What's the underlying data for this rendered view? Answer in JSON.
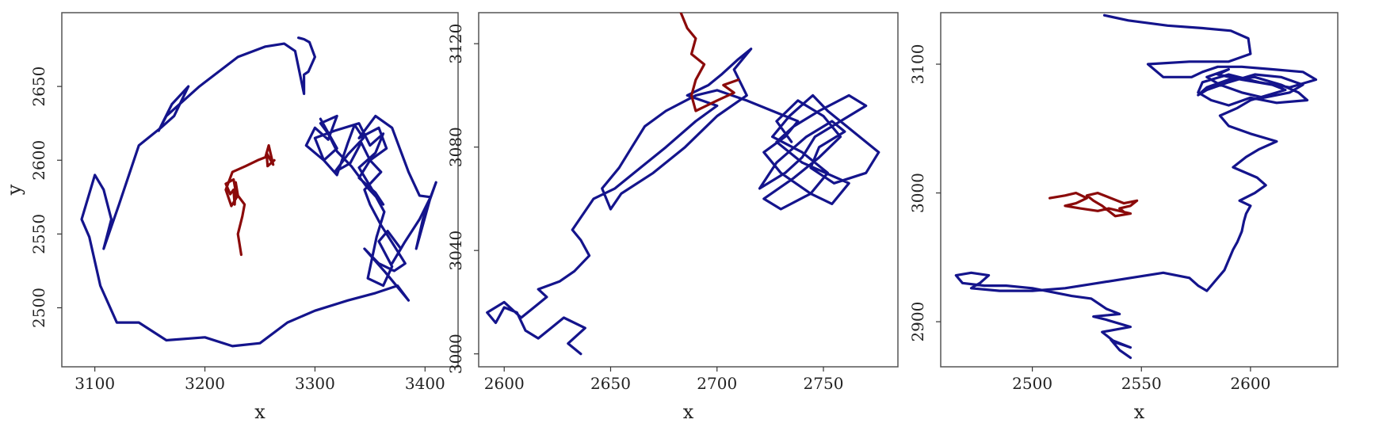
{
  "colors": {
    "track_a": "#14148c",
    "track_b": "#8b0a0a",
    "frame": "#555555"
  },
  "chart_data": [
    {
      "type": "line",
      "xlabel": "x",
      "ylabel": "y",
      "xlim": [
        3070,
        3430
      ],
      "ylim": [
        2460,
        2700
      ],
      "xticks": [
        3100,
        3200,
        3300,
        3400
      ],
      "yticks": [
        2500,
        2550,
        2600,
        2650
      ],
      "series": [
        {
          "color": "#14148c",
          "x": [
            3285,
            3290,
            3295,
            3300,
            3294,
            3290,
            3290,
            3282,
            3272,
            3255,
            3230,
            3195,
            3165,
            3158,
            3170,
            3185,
            3172,
            3160,
            3140,
            3122,
            3108,
            3115,
            3108,
            3100,
            3088,
            3095,
            3105,
            3120,
            3140,
            3165,
            3200,
            3225,
            3250,
            3275,
            3300,
            3330,
            3355,
            3375,
            3385,
            3364,
            3345,
            3358,
            3372,
            3382,
            3372,
            3360,
            3350,
            3345,
            3360,
            3350,
            3365,
            3358,
            3340,
            3355,
            3370,
            3385,
            3395,
            3405,
            3410,
            3398,
            3392,
            3405,
            3395,
            3382,
            3370,
            3378,
            3366,
            3358,
            3370,
            3362,
            3348,
            3356,
            3363,
            3352,
            3340,
            3355,
            3362,
            3350,
            3340,
            3318,
            3300,
            3308,
            3320,
            3330,
            3336,
            3344,
            3330,
            3318,
            3332,
            3342,
            3350,
            3340,
            3355,
            3362,
            3347,
            3333,
            3320,
            3312,
            3305,
            3320,
            3312,
            3300,
            3292,
            3308,
            3320,
            3305
          ],
          "y": [
            2683,
            2682,
            2680,
            2670,
            2660,
            2658,
            2645,
            2674,
            2679,
            2677,
            2670,
            2650,
            2630,
            2620,
            2638,
            2650,
            2630,
            2622,
            2610,
            2570,
            2540,
            2560,
            2580,
            2590,
            2560,
            2548,
            2515,
            2490,
            2490,
            2478,
            2480,
            2474,
            2476,
            2490,
            2498,
            2505,
            2510,
            2515,
            2505,
            2524,
            2540,
            2530,
            2525,
            2530,
            2542,
            2556,
            2570,
            2580,
            2592,
            2600,
            2608,
            2622,
            2615,
            2630,
            2622,
            2592,
            2576,
            2575,
            2585,
            2560,
            2540,
            2575,
            2560,
            2545,
            2530,
            2540,
            2552,
            2545,
            2528,
            2515,
            2520,
            2548,
            2565,
            2580,
            2595,
            2605,
            2618,
            2610,
            2625,
            2620,
            2615,
            2600,
            2590,
            2612,
            2624,
            2615,
            2604,
            2592,
            2598,
            2612,
            2600,
            2588,
            2578,
            2570,
            2582,
            2596,
            2606,
            2618,
            2625,
            2630,
            2614,
            2622,
            2610,
            2600,
            2608,
            2628
          ]
        },
        {
          "color": "#8b0a0a",
          "x": [
            3233,
            3230,
            3234,
            3236,
            3230,
            3228,
            3227,
            3226,
            3223,
            3219,
            3226,
            3229,
            3224,
            3219,
            3225,
            3237,
            3248,
            3255,
            3258,
            3262,
            3256,
            3257,
            3263
          ],
          "y": [
            2536,
            2550,
            2562,
            2570,
            2576,
            2585,
            2570,
            2580,
            2577,
            2584,
            2587,
            2575,
            2569,
            2580,
            2592,
            2596,
            2600,
            2602,
            2610,
            2597,
            2605,
            2596,
            2600
          ]
        }
      ]
    },
    {
      "type": "line",
      "xlabel": "x",
      "ylabel": "",
      "xlim": [
        2588,
        2785
      ],
      "ylim": [
        2995,
        3132
      ],
      "xticks": [
        2600,
        2650,
        2700,
        2750
      ],
      "yticks": [
        3000,
        3040,
        3080,
        3120
      ],
      "series": [
        {
          "color": "#14148c",
          "x": [
            2636,
            2630,
            2638,
            2628,
            2622,
            2616,
            2610,
            2606,
            2600,
            2596,
            2592,
            2600,
            2608,
            2614,
            2620,
            2616,
            2626,
            2633,
            2640,
            2636,
            2632,
            2637,
            2642,
            2652,
            2664,
            2676,
            2690,
            2700,
            2686,
            2696,
            2702,
            2710,
            2716,
            2708,
            2714,
            2700,
            2685,
            2670,
            2655,
            2650,
            2646,
            2654,
            2660,
            2666,
            2676,
            2690,
            2700,
            2714,
            2726,
            2738,
            2732,
            2722,
            2730,
            2744,
            2754,
            2762,
            2740,
            2728,
            2736,
            2748,
            2762,
            2770,
            2758,
            2746,
            2740,
            2732,
            2720,
            2728,
            2742,
            2754,
            2760,
            2748,
            2744,
            2755,
            2770,
            2776,
            2764,
            2752,
            2745,
            2734,
            2726,
            2740,
            2752,
            2744,
            2730,
            2722,
            2736,
            2748,
            2758,
            2750,
            2738,
            2728,
            2735
          ],
          "y": [
            3000,
            3004,
            3010,
            3014,
            3010,
            3006,
            3009,
            3016,
            3018,
            3012,
            3016,
            3020,
            3014,
            3018,
            3022,
            3025,
            3028,
            3032,
            3038,
            3044,
            3048,
            3054,
            3060,
            3064,
            3072,
            3080,
            3090,
            3096,
            3100,
            3104,
            3108,
            3114,
            3118,
            3110,
            3100,
            3092,
            3080,
            3070,
            3062,
            3056,
            3064,
            3072,
            3080,
            3088,
            3094,
            3100,
            3102,
            3098,
            3094,
            3090,
            3084,
            3078,
            3070,
            3062,
            3058,
            3066,
            3074,
            3082,
            3088,
            3094,
            3100,
            3096,
            3090,
            3084,
            3076,
            3070,
            3064,
            3074,
            3084,
            3090,
            3086,
            3080,
            3072,
            3066,
            3070,
            3078,
            3086,
            3094,
            3100,
            3092,
            3084,
            3078,
            3070,
            3062,
            3056,
            3060,
            3068,
            3076,
            3084,
            3092,
            3098,
            3090,
            3082
          ]
        },
        {
          "color": "#8b0a0a",
          "x": [
            2683,
            2686,
            2690,
            2688,
            2694,
            2690,
            2688,
            2690,
            2700,
            2708,
            2703,
            2710
          ],
          "y": [
            3132,
            3126,
            3122,
            3116,
            3112,
            3106,
            3100,
            3094,
            3098,
            3101,
            3104,
            3106
          ]
        }
      ]
    },
    {
      "type": "line",
      "xlabel": "x",
      "ylabel": "",
      "xlim": [
        2458,
        2640
      ],
      "ylim": [
        2865,
        3140
      ],
      "xticks": [
        2500,
        2550,
        2600
      ],
      "yticks": [
        2900,
        3000,
        3100
      ],
      "series": [
        {
          "color": "#14148c",
          "x": [
            2545,
            2540,
            2536,
            2545,
            2538,
            2532,
            2545,
            2533,
            2528,
            2540,
            2534,
            2527,
            2518,
            2500,
            2488,
            2478,
            2468,
            2465,
            2472,
            2480,
            2476,
            2472,
            2485,
            2500,
            2515,
            2530,
            2545,
            2560,
            2572,
            2576,
            2580,
            2584,
            2588,
            2590,
            2592,
            2594,
            2596,
            2597,
            2598,
            2600,
            2595,
            2602,
            2607,
            2603,
            2592,
            2598,
            2604,
            2612,
            2600,
            2590,
            2586,
            2594,
            2600,
            2608,
            2616,
            2610,
            2596,
            2585,
            2590,
            2580,
            2586,
            2596,
            2606,
            2618,
            2624,
            2614,
            2602,
            2590,
            2580,
            2576,
            2580,
            2590,
            2602,
            2614,
            2622,
            2626,
            2612,
            2600,
            2590,
            2582,
            2576,
            2578,
            2590,
            2604,
            2618,
            2630,
            2624,
            2610,
            2596,
            2585,
            2578,
            2573,
            2560,
            2553,
            2572,
            2590,
            2600,
            2599,
            2591,
            2578,
            2562,
            2544,
            2533
          ],
          "y": [
            2872,
            2878,
            2886,
            2880,
            2884,
            2892,
            2896,
            2902,
            2904,
            2906,
            2910,
            2918,
            2920,
            2926,
            2928,
            2928,
            2930,
            2936,
            2938,
            2936,
            2930,
            2926,
            2924,
            2924,
            2926,
            2930,
            2934,
            2938,
            2934,
            2928,
            2924,
            2932,
            2940,
            2948,
            2956,
            2962,
            2970,
            2978,
            2984,
            2990,
            2994,
            3000,
            3006,
            3012,
            3020,
            3028,
            3034,
            3040,
            3046,
            3052,
            3060,
            3066,
            3072,
            3076,
            3080,
            3084,
            3088,
            3092,
            3096,
            3090,
            3084,
            3078,
            3074,
            3078,
            3084,
            3090,
            3092,
            3086,
            3080,
            3076,
            3082,
            3088,
            3090,
            3084,
            3078,
            3072,
            3070,
            3074,
            3068,
            3072,
            3078,
            3086,
            3092,
            3086,
            3082,
            3088,
            3094,
            3096,
            3098,
            3098,
            3094,
            3090,
            3090,
            3100,
            3102,
            3102,
            3108,
            3120,
            3126,
            3128,
            3130,
            3134,
            3138
          ]
        },
        {
          "color": "#8b0a0a",
          "x": [
            2508,
            2515,
            2520,
            2525,
            2520,
            2515,
            2522,
            2530,
            2535,
            2540,
            2545,
            2538,
            2532,
            2528,
            2525,
            2530,
            2536,
            2542,
            2548,
            2545,
            2540,
            2543
          ],
          "y": [
            2996,
            2998,
            3000,
            2996,
            2992,
            2990,
            2988,
            2986,
            2988,
            2986,
            2984,
            2982,
            2990,
            2994,
            2998,
            3000,
            2996,
            2992,
            2994,
            2990,
            2988,
            2984
          ]
        }
      ]
    }
  ]
}
